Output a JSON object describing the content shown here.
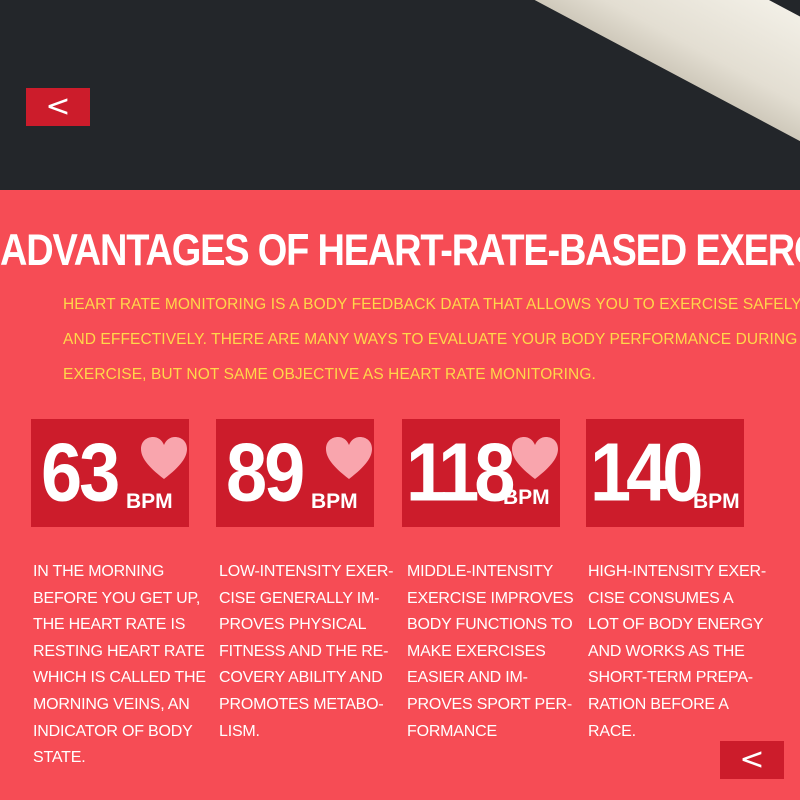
{
  "nav": {
    "prev_symbol": "<",
    "next_symbol": "<"
  },
  "title": "ADVANTAGES OF HEART-RATE-BASED EXERCISES",
  "intro": {
    "lines": [
      "HEART RATE MONITORING IS A BODY FEEDBACK DATA THAT ALLOWS YOU TO EXERCISE SAFELY",
      "AND EFFECTIVELY. THERE ARE MANY WAYS TO EVALUATE YOUR BODY PERFORMANCE DURING",
      "EXERCISE, BUT NOT SAME OBJECTIVE AS HEART RATE MONITORING."
    ]
  },
  "cards": [
    {
      "value": "63",
      "unit": "BPM",
      "show_heart": true,
      "description": [
        "IN THE MORNING",
        "BEFORE YOU GET UP,",
        "THE HEART RATE IS",
        "RESTING HEART RATE",
        "WHICH IS CALLED THE",
        "MORNING VEINS, AN",
        "INDICATOR OF BODY",
        "STATE."
      ]
    },
    {
      "value": "89",
      "unit": "BPM",
      "show_heart": true,
      "description": [
        "LOW-INTENSITY EXER-",
        "CISE GENERALLY IM-",
        "PROVES PHYSICAL",
        "FITNESS AND THE RE-",
        "COVERY ABILITY AND",
        "PROMOTES METABO-",
        "LISM."
      ]
    },
    {
      "value": "118",
      "unit": "BPM",
      "show_heart": true,
      "description": [
        "MIDDLE-INTENSITY",
        "EXERCISE IMPROVES",
        "BODY FUNCTIONS TO",
        "MAKE EXERCISES",
        "EASIER AND IM-",
        "PROVES SPORT PER-",
        "FORMANCE"
      ]
    },
    {
      "value": "140",
      "unit": "BPM",
      "show_heart": false,
      "description": [
        "HIGH-INTENSITY EXER-",
        "CISE CONSUMES A",
        "LOT OF BODY ENERGY",
        "AND WORKS AS THE",
        "SHORT-TERM PREPA-",
        "RATION BEFORE A",
        "RACE."
      ]
    }
  ],
  "colors": {
    "banner": "#23262a",
    "background": "#f64c55",
    "card": "#cc1c2b",
    "intro_text": "#ffd84a",
    "heart": "#f9a5ad"
  }
}
